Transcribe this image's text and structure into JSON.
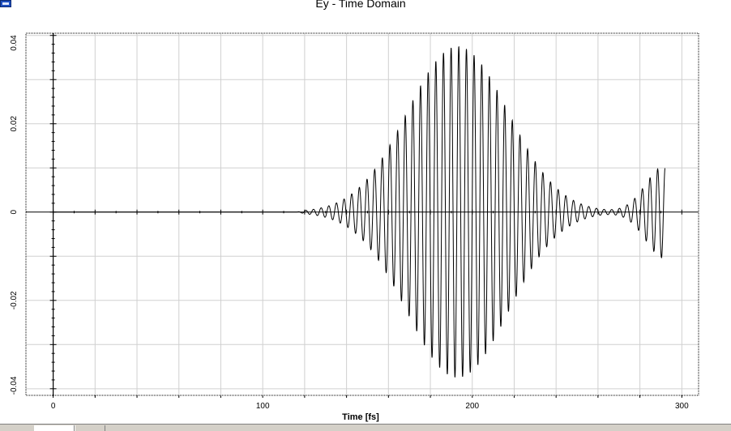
{
  "window": {
    "app_icon": "app-icon"
  },
  "tabs": [
    {
      "label": ""
    },
    {
      "label": ""
    }
  ],
  "chart_data": {
    "type": "line",
    "title": "Ey - Time Domain",
    "xlabel": "Time [fs]",
    "ylabel": "",
    "xlim": [
      -13,
      308
    ],
    "ylim": [
      -0.0415,
      0.0405
    ],
    "x_ticks": [
      0,
      100,
      200,
      300
    ],
    "x_tick_labels": [
      "0",
      "100",
      "200",
      "300"
    ],
    "y_ticks": [
      -0.04,
      -0.02,
      0,
      0.02,
      0.04
    ],
    "y_tick_labels": [
      "-0.04",
      "-0.02",
      "0",
      "0.02",
      "0.04"
    ],
    "grid": true,
    "legend": "none",
    "line_color": "#000000",
    "series": [
      {
        "signal": {
          "carrier_period_fs": 3.65,
          "pulse_center_fs": 193,
          "pulse_peak": 0.0375,
          "pulse_width_fs": 34,
          "secondary_center_fs": 292,
          "secondary_peak": 0.0105,
          "secondary_width_fs": 13,
          "onset_fs": 116,
          "end_fs": 292
        }
      }
    ]
  }
}
